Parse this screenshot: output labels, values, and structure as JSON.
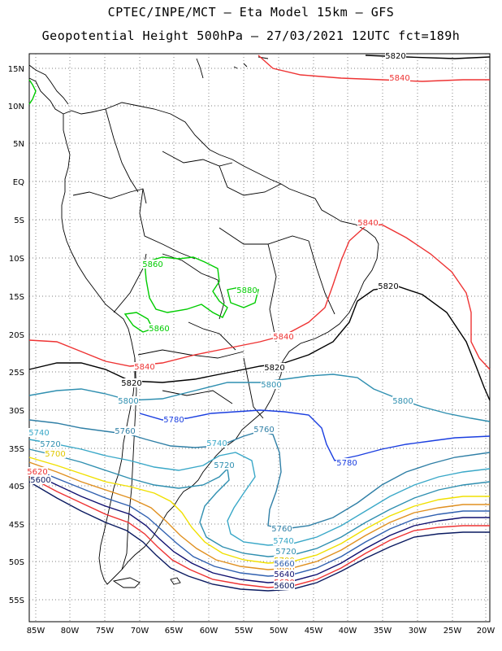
{
  "title_line1": "CPTEC/INPE/MCT –  Eta Model 15km – GFS",
  "title_line2": "Geopotential Height 500hPa – 27/03/2021 12UTC fct=189h",
  "lat_ticks": [
    "15N",
    "10N",
    "5N",
    "EQ",
    "5S",
    "10S",
    "15S",
    "20S",
    "25S",
    "30S",
    "35S",
    "40S",
    "45S",
    "50S",
    "55S"
  ],
  "lon_ticks": [
    "85W",
    "80W",
    "75W",
    "70W",
    "65W",
    "60W",
    "55W",
    "50W",
    "45W",
    "40W",
    "35W",
    "30W",
    "25W",
    "20W"
  ],
  "contours": [
    {
      "label": "5880",
      "color": "#00cc00"
    },
    {
      "label": "5860",
      "color": "#00cc00"
    },
    {
      "label": "5840",
      "color": "#ee3333"
    },
    {
      "label": "5820",
      "color": "#000000"
    },
    {
      "label": "5800",
      "color": "#2f8fb0"
    },
    {
      "label": "5780",
      "color": "#1a3ee0"
    },
    {
      "label": "5760",
      "color": "#2f7fa6"
    },
    {
      "label": "5740",
      "color": "#3aa8c8"
    },
    {
      "label": "5720",
      "color": "#2f8fb0"
    },
    {
      "label": "5700",
      "color": "#f0e000"
    },
    {
      "label": "5680",
      "color": "#e09020"
    },
    {
      "label": "5660",
      "color": "#3060b0"
    },
    {
      "label": "5640",
      "color": "#101070"
    },
    {
      "label": "5620",
      "color": "#ee3333"
    },
    {
      "label": "5600",
      "color": "#0a1a60"
    }
  ],
  "contour_labels": [
    {
      "text": "5820",
      "color": "#000000"
    },
    {
      "text": "5840",
      "color": "#ee3333"
    },
    {
      "text": "5840",
      "color": "#ee3333"
    },
    {
      "text": "5820",
      "color": "#000000"
    },
    {
      "text": "5860",
      "color": "#00cc00"
    },
    {
      "text": "5880",
      "color": "#00cc00"
    },
    {
      "text": "5860",
      "color": "#00cc00"
    },
    {
      "text": "5840",
      "color": "#ee3333"
    },
    {
      "text": "5840",
      "color": "#ee3333"
    },
    {
      "text": "5820",
      "color": "#000000"
    },
    {
      "text": "5820",
      "color": "#000000"
    },
    {
      "text": "5800",
      "color": "#2f8fb0"
    },
    {
      "text": "5800",
      "color": "#2f8fb0"
    },
    {
      "text": "5800",
      "color": "#2f8fb0"
    },
    {
      "text": "5780",
      "color": "#1a3ee0"
    },
    {
      "text": "5780",
      "color": "#1a3ee0"
    },
    {
      "text": "5760",
      "color": "#2f7fa6"
    },
    {
      "text": "5760",
      "color": "#2f7fa6"
    },
    {
      "text": "5760",
      "color": "#2f7fa6"
    },
    {
      "text": "5740",
      "color": "#3aa8c8"
    },
    {
      "text": "5740",
      "color": "#3aa8c8"
    },
    {
      "text": "5740",
      "color": "#3aa8c8"
    },
    {
      "text": "5720",
      "color": "#2f8fb0"
    },
    {
      "text": "5720",
      "color": "#2f8fb0"
    },
    {
      "text": "5720",
      "color": "#2f8fb0"
    },
    {
      "text": "5700",
      "color": "#e0c800"
    },
    {
      "text": "5700",
      "color": "#e0c800"
    },
    {
      "text": "5680",
      "color": "#e09020"
    },
    {
      "text": "5660",
      "color": "#3060b0"
    },
    {
      "text": "5640",
      "color": "#101070"
    },
    {
      "text": "5620",
      "color": "#ee3333"
    },
    {
      "text": "5620",
      "color": "#ee3333"
    },
    {
      "text": "5600",
      "color": "#0a1a60"
    },
    {
      "text": "5600",
      "color": "#0a1a60"
    }
  ]
}
